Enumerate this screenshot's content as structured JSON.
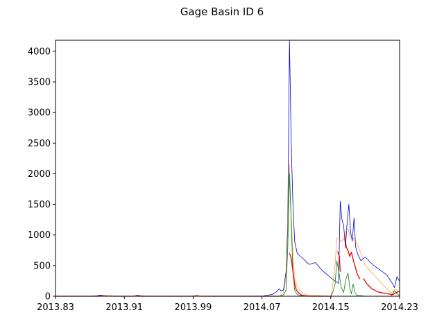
{
  "chart_data": {
    "type": "line",
    "title": "Gage Basin ID 6",
    "xlabel": "",
    "ylabel": "",
    "xlim": [
      2013.83,
      2014.23
    ],
    "ylim": [
      0,
      4180
    ],
    "x_ticks": [
      2013.83,
      2013.91,
      2013.99,
      2014.07,
      2014.15,
      2014.23
    ],
    "x_tick_labels": [
      "2013.83",
      "2013.91",
      "2013.99",
      "2014.07",
      "2014.15",
      "2014.23"
    ],
    "y_ticks": [
      0,
      500,
      1000,
      1500,
      2000,
      2500,
      3000,
      3500,
      4000
    ],
    "y_tick_labels": [
      "0",
      "500",
      "1000",
      "1500",
      "2000",
      "2500",
      "3000",
      "3500",
      "4000"
    ],
    "grid": false,
    "legend": "none",
    "series": [
      {
        "color": "#0000cc",
        "x": [
          2013.83,
          2013.87,
          2013.878,
          2013.882,
          2013.886,
          2013.89,
          2013.9,
          2013.921,
          2013.925,
          2013.929,
          2013.94,
          2013.99,
          2014.015,
          2014.05,
          2014.07,
          2014.082,
          2014.086,
          2014.09,
          2014.092,
          2014.095,
          2014.098,
          2014.1,
          2014.102,
          2014.104,
          2014.106,
          2014.108,
          2014.111,
          2014.115,
          2014.119,
          2014.122,
          2014.125,
          2014.132,
          2014.14,
          2014.146,
          2014.15,
          2014.152,
          2014.155,
          2014.157,
          2014.159,
          2014.161,
          2014.163,
          2014.165,
          2014.167,
          2014.169,
          2014.171,
          2014.173,
          2014.175,
          2014.177,
          2014.179,
          2014.181,
          2014.185,
          2014.19,
          2014.2,
          2014.215,
          2014.222,
          2014.224,
          2014.227,
          2014.23
        ],
        "y": [
          0,
          0,
          5,
          20,
          10,
          5,
          0,
          0,
          15,
          5,
          0,
          0,
          0,
          0,
          0,
          30,
          60,
          120,
          90,
          100,
          400,
          1200,
          4180,
          2500,
          1500,
          900,
          700,
          650,
          600,
          550,
          520,
          550,
          420,
          350,
          300,
          280,
          250,
          230,
          210,
          1550,
          1250,
          1150,
          800,
          1200,
          1500,
          1050,
          900,
          1280,
          800,
          700,
          580,
          640,
          500,
          350,
          200,
          140,
          320,
          240
        ]
      },
      {
        "color": "#ffa040",
        "x": [
          2013.83,
          2014.09,
          2014.095,
          2014.098,
          2014.1,
          2014.102,
          2014.104,
          2014.106,
          2014.108,
          2014.111,
          2014.115,
          2014.119,
          2014.122,
          2014.15,
          2014.152,
          2014.155,
          2014.157,
          2014.16,
          2014.162,
          2014.165,
          2014.167,
          2014.17,
          2014.173,
          2014.175,
          2014.178,
          2014.181,
          2014.185,
          2014.19,
          2014.22,
          2014.225,
          2014.23
        ],
        "y": [
          0,
          0,
          50,
          300,
          1000,
          2150,
          1300,
          700,
          300,
          150,
          80,
          40,
          20,
          0,
          150,
          500,
          950,
          920,
          900,
          930,
          1050,
          1100,
          950,
          980,
          900,
          850,
          700,
          500,
          50,
          120,
          60
        ]
      },
      {
        "color": "#008800",
        "x": [
          2013.83,
          2014.09,
          2014.095,
          2014.098,
          2014.1,
          2014.102,
          2014.104,
          2014.106,
          2014.108,
          2014.111,
          2014.115,
          2014.119,
          2014.122,
          2014.15,
          2014.152,
          2014.155,
          2014.157,
          2014.16,
          2014.162,
          2014.165,
          2014.167,
          2014.17,
          2014.172,
          2014.174,
          2014.176,
          2014.178,
          2014.18,
          2014.19,
          2014.22,
          2014.224,
          2014.227,
          2014.23
        ],
        "y": [
          0,
          0,
          20,
          100,
          800,
          2000,
          1200,
          400,
          100,
          30,
          10,
          5,
          0,
          0,
          50,
          200,
          580,
          350,
          150,
          60,
          250,
          380,
          150,
          40,
          200,
          60,
          20,
          0,
          0,
          90,
          40,
          10
        ]
      },
      {
        "color": "#ee0000",
        "segments": [
          {
            "x": [
              2013.83,
              2013.88,
              2013.884,
              2013.888,
              2013.9,
              2013.92,
              2013.924,
              2013.928,
              2013.99,
              2013.994,
              2013.998,
              2014.05,
              2014.09
            ],
            "y": [
              0,
              0,
              10,
              5,
              0,
              0,
              8,
              0,
              0,
              10,
              0,
              0,
              0
            ]
          },
          {
            "x": [
              2014.102,
              2014.104,
              2014.106,
              2014.108,
              2014.11,
              2014.113,
              2014.116,
              2014.119,
              2014.125,
              2014.15
            ],
            "y": [
              700,
              630,
              400,
              200,
              100,
              50,
              20,
              10,
              0,
              0
            ]
          },
          {
            "x": [
              2014.158,
              2014.16,
              2014.161
            ],
            "y": [
              730,
              650,
              400
            ]
          },
          {
            "x": [
              2014.166,
              2014.168,
              2014.17,
              2014.172,
              2014.174,
              2014.176,
              2014.178,
              2014.181,
              2014.184
            ],
            "y": [
              1000,
              800,
              750,
              650,
              720,
              600,
              500,
              350,
              280
            ]
          },
          {
            "x": [
              2014.188,
              2014.192,
              2014.198,
              2014.205,
              2014.212,
              2014.218,
              2014.222,
              2014.226,
              2014.23
            ],
            "y": [
              290,
              200,
              120,
              70,
              50,
              35,
              25,
              60,
              80
            ]
          }
        ]
      }
    ]
  }
}
